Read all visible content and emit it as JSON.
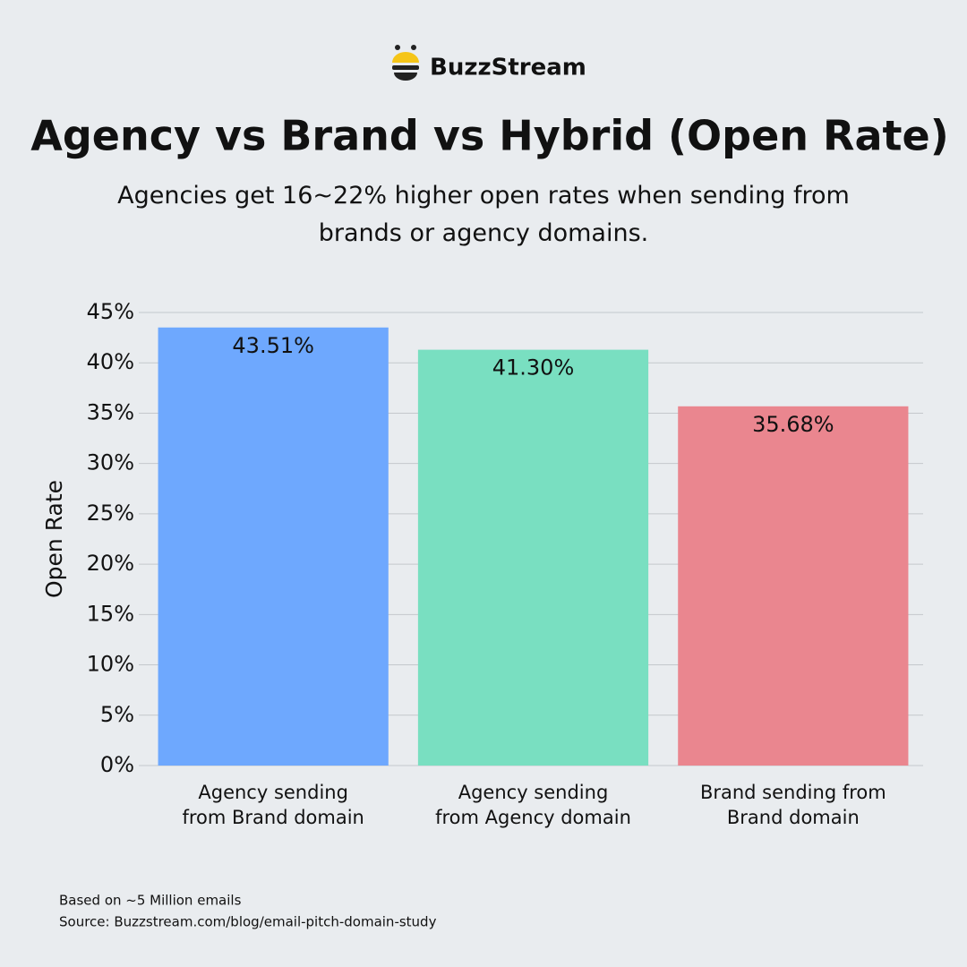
{
  "brand": "BuzzStream",
  "chart_data": {
    "type": "bar",
    "title": "Agency vs Brand vs Hybrid (Open Rate)",
    "subtitle": "Agencies get 16~22% higher open rates when sending from brands or agency domains.",
    "y_label": "Open Rate",
    "categories": [
      "Agency sending\nfrom Brand domain",
      "Agency sending\nfrom Agency domain",
      "Brand sending from\nBrand domain"
    ],
    "values": [
      43.51,
      41.3,
      35.68
    ],
    "value_labels": [
      "43.51%",
      "41.30%",
      "35.68%"
    ],
    "colors": [
      "#6ea8fe",
      "#79dfc1",
      "#ea868f"
    ],
    "ylim": [
      0,
      45
    ],
    "yticks": [
      {
        "value": 0,
        "label": "0%"
      },
      {
        "value": 5,
        "label": "5%"
      },
      {
        "value": 10,
        "label": "10%"
      },
      {
        "value": 15,
        "label": "15%"
      },
      {
        "value": 20,
        "label": "20%"
      },
      {
        "value": 25,
        "label": "25%"
      },
      {
        "value": 30,
        "label": "30%"
      },
      {
        "value": 35,
        "label": "35%"
      },
      {
        "value": 40,
        "label": "40%"
      },
      {
        "value": 45,
        "label": "45%"
      }
    ],
    "grid": true
  },
  "footer": {
    "note": "Based on ~5 Million emails",
    "source": "Source: Buzzstream.com/blog/email-pitch-domain-study"
  }
}
